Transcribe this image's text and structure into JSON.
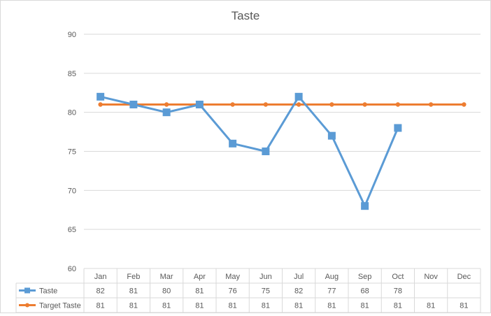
{
  "chart_data": {
    "type": "line",
    "title": "Taste",
    "categories": [
      "Jan",
      "Feb",
      "Mar",
      "Apr",
      "May",
      "Jun",
      "Jul",
      "Aug",
      "Sep",
      "Oct",
      "Nov",
      "Dec"
    ],
    "ylim": [
      60,
      90
    ],
    "yticks": [
      60,
      65,
      70,
      75,
      80,
      85,
      90
    ],
    "grid": true,
    "data_table": true,
    "series": [
      {
        "name": "Taste",
        "color": "#5b9bd5",
        "marker": "square",
        "values": [
          82,
          81,
          80,
          81,
          76,
          75,
          82,
          77,
          68,
          78,
          null,
          null
        ]
      },
      {
        "name": "Target Taste",
        "color": "#ed7d31",
        "marker": "circle",
        "values": [
          81,
          81,
          81,
          81,
          81,
          81,
          81,
          81,
          81,
          81,
          81,
          81
        ]
      }
    ]
  }
}
